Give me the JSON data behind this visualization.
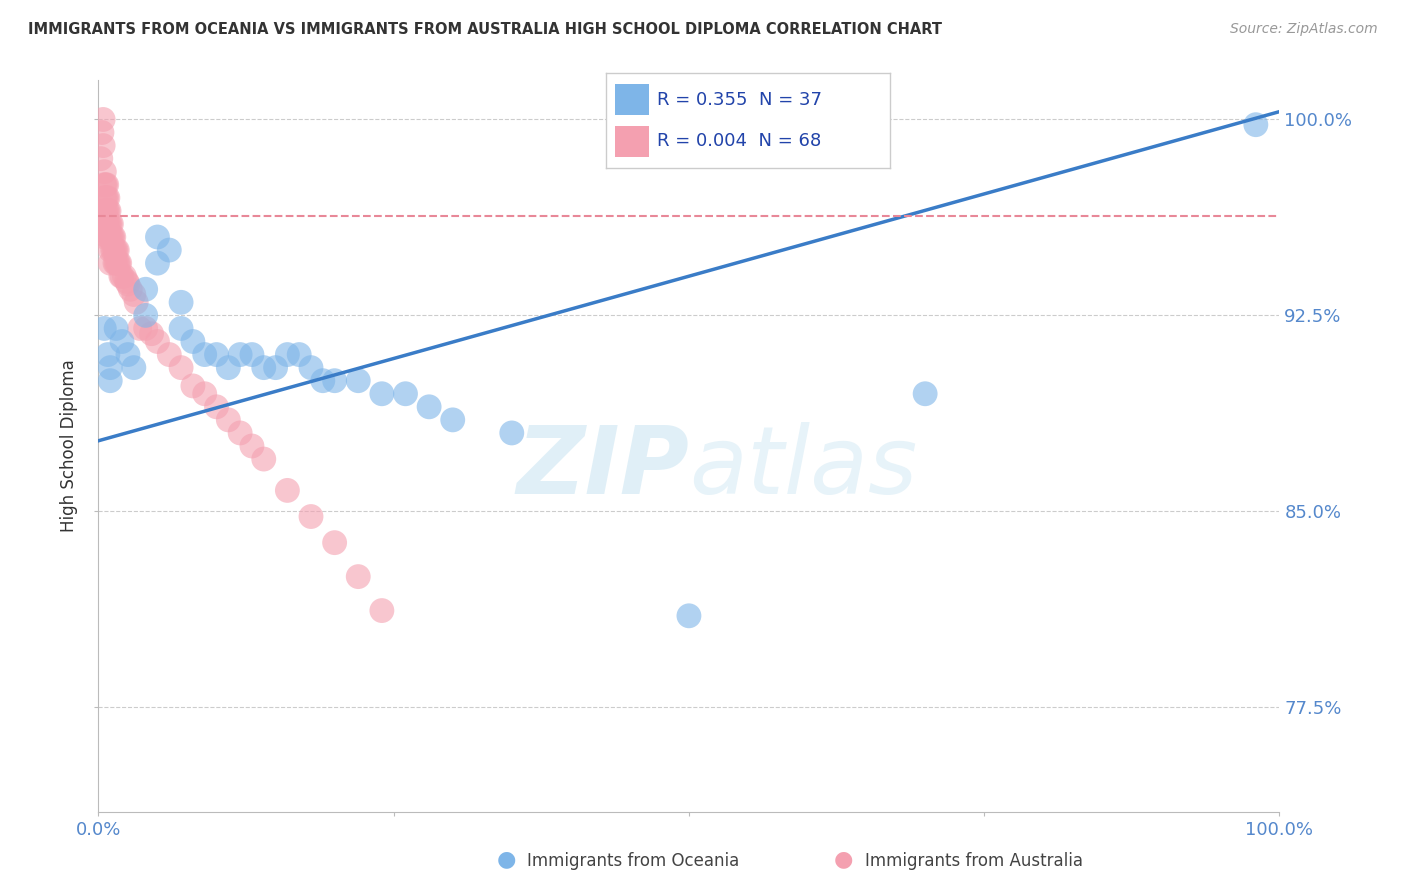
{
  "title": "IMMIGRANTS FROM OCEANIA VS IMMIGRANTS FROM AUSTRALIA HIGH SCHOOL DIPLOMA CORRELATION CHART",
  "source": "Source: ZipAtlas.com",
  "ylabel": "High School Diploma",
  "ytick_values": [
    0.775,
    0.85,
    0.925,
    1.0
  ],
  "ytick_labels": [
    "77.5%",
    "85.0%",
    "92.5%",
    "100.0%"
  ],
  "xlim": [
    0.0,
    1.0
  ],
  "ylim": [
    0.735,
    1.015
  ],
  "blue_color": "#7EB5E8",
  "pink_color": "#F4A0B0",
  "blue_line_color": "#3A7CC7",
  "pink_line_color": "#E88898",
  "grid_color": "#CCCCCC",
  "title_color": "#333333",
  "tick_color": "#5588CC",
  "blue_scatter_x": [
    0.005,
    0.008,
    0.01,
    0.01,
    0.015,
    0.02,
    0.025,
    0.03,
    0.04,
    0.04,
    0.05,
    0.05,
    0.06,
    0.07,
    0.07,
    0.08,
    0.09,
    0.1,
    0.11,
    0.12,
    0.13,
    0.14,
    0.15,
    0.16,
    0.17,
    0.18,
    0.19,
    0.2,
    0.22,
    0.24,
    0.26,
    0.28,
    0.3,
    0.35,
    0.5,
    0.7,
    0.98
  ],
  "blue_scatter_y": [
    0.92,
    0.91,
    0.905,
    0.9,
    0.92,
    0.915,
    0.91,
    0.905,
    0.925,
    0.935,
    0.945,
    0.955,
    0.95,
    0.93,
    0.92,
    0.915,
    0.91,
    0.91,
    0.905,
    0.91,
    0.91,
    0.905,
    0.905,
    0.91,
    0.91,
    0.905,
    0.9,
    0.9,
    0.9,
    0.895,
    0.895,
    0.89,
    0.885,
    0.88,
    0.81,
    0.895,
    0.998
  ],
  "pink_scatter_x": [
    0.002,
    0.003,
    0.004,
    0.004,
    0.005,
    0.005,
    0.005,
    0.005,
    0.005,
    0.005,
    0.006,
    0.006,
    0.006,
    0.007,
    0.007,
    0.007,
    0.007,
    0.008,
    0.008,
    0.008,
    0.008,
    0.009,
    0.009,
    0.009,
    0.01,
    0.01,
    0.01,
    0.01,
    0.011,
    0.011,
    0.012,
    0.012,
    0.013,
    0.013,
    0.014,
    0.014,
    0.015,
    0.015,
    0.016,
    0.016,
    0.017,
    0.018,
    0.019,
    0.02,
    0.022,
    0.024,
    0.025,
    0.027,
    0.03,
    0.032,
    0.035,
    0.04,
    0.045,
    0.05,
    0.06,
    0.07,
    0.08,
    0.09,
    0.1,
    0.11,
    0.12,
    0.13,
    0.14,
    0.16,
    0.18,
    0.2,
    0.22,
    0.24
  ],
  "pink_scatter_y": [
    0.985,
    0.995,
    1.0,
    0.99,
    0.98,
    0.975,
    0.97,
    0.965,
    0.96,
    0.955,
    0.975,
    0.97,
    0.965,
    0.975,
    0.97,
    0.965,
    0.96,
    0.97,
    0.965,
    0.96,
    0.955,
    0.965,
    0.96,
    0.955,
    0.96,
    0.955,
    0.95,
    0.945,
    0.96,
    0.955,
    0.955,
    0.95,
    0.955,
    0.95,
    0.95,
    0.945,
    0.95,
    0.945,
    0.95,
    0.945,
    0.945,
    0.945,
    0.94,
    0.94,
    0.94,
    0.938,
    0.937,
    0.935,
    0.933,
    0.93,
    0.92,
    0.92,
    0.918,
    0.915,
    0.91,
    0.905,
    0.898,
    0.895,
    0.89,
    0.885,
    0.88,
    0.875,
    0.87,
    0.858,
    0.848,
    0.838,
    0.825,
    0.812
  ],
  "blue_line_x": [
    0.0,
    1.0
  ],
  "blue_line_y": [
    0.877,
    1.003
  ],
  "pink_line_x": [
    0.0,
    1.0
  ],
  "pink_line_y": [
    0.963,
    0.963
  ],
  "legend_entries": [
    {
      "label": "R = 0.355  N = 37",
      "color": "#7EB5E8"
    },
    {
      "label": "R = 0.004  N = 68",
      "color": "#F4A0B0"
    }
  ],
  "bottom_legend": [
    {
      "label": "Immigrants from Oceania",
      "color": "#7EB5E8"
    },
    {
      "label": "Immigrants from Australia",
      "color": "#F4A0B0"
    }
  ]
}
